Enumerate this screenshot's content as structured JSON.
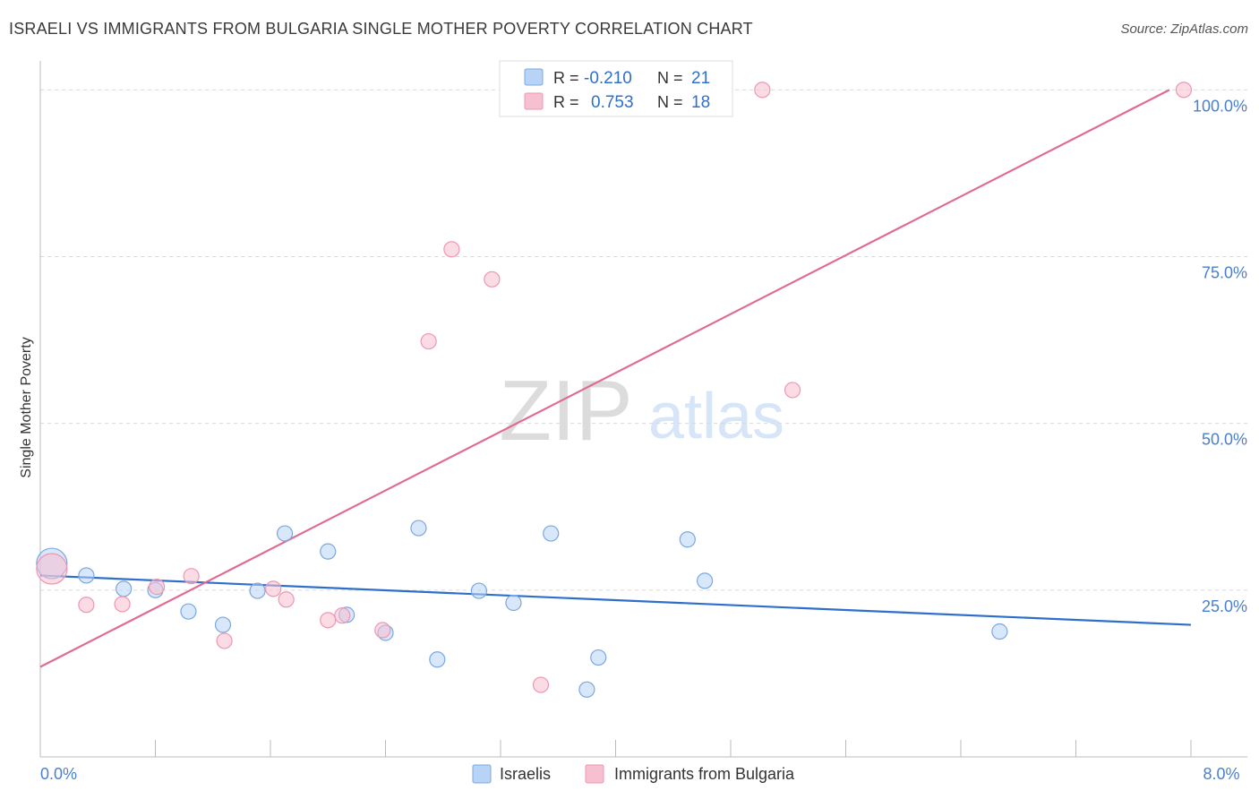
{
  "title": "ISRAELI VS IMMIGRANTS FROM BULGARIA SINGLE MOTHER POVERTY CORRELATION CHART",
  "source": "Source: ZipAtlas.com",
  "watermark": {
    "zip": "ZIP",
    "atlas": "atlas"
  },
  "colors": {
    "blue_fill": "#b8d3f5",
    "blue_stroke": "#7aa8e0",
    "blue_line": "#2e6fcc",
    "pink_fill": "#f7c0d0",
    "pink_stroke": "#ee96b2",
    "pink_line": "#e06a92",
    "tick_label": "#4a7fcf",
    "grid": "#d9d9d9"
  },
  "legend_top": [
    {
      "r_label": "R =",
      "r_value": "-0.210",
      "n_label": "N =",
      "n_value": "21",
      "series": "israelis"
    },
    {
      "r_label": "R =",
      "r_value": "0.753",
      "n_label": "N =",
      "n_value": "18",
      "series": "bulgaria"
    }
  ],
  "legend_bottom": [
    {
      "label": "Israelis",
      "series": "israelis"
    },
    {
      "label": "Immigrants from Bulgaria",
      "series": "bulgaria"
    }
  ],
  "chart_data": {
    "type": "scatter",
    "title": "ISRAELI VS IMMIGRANTS FROM BULGARIA SINGLE MOTHER POVERTY CORRELATION CHART",
    "xlabel": "",
    "ylabel": "Single Mother Poverty",
    "xlim": [
      0,
      8
    ],
    "ylim": [
      0,
      103
    ],
    "x_tick_labels": [
      {
        "value": 0,
        "label": "0.0%"
      },
      {
        "value": 8,
        "label": "8.0%"
      }
    ],
    "y_tick_labels": [
      {
        "value": 25,
        "label": "25.0%"
      },
      {
        "value": 50,
        "label": "50.0%"
      },
      {
        "value": 75,
        "label": "75.0%"
      },
      {
        "value": 100,
        "label": "100.0%"
      }
    ],
    "series": [
      {
        "name": "Israelis",
        "key": "israelis",
        "points": [
          {
            "x": 0.08,
            "y": 29.0,
            "big": true
          },
          {
            "x": 0.32,
            "y": 27.2
          },
          {
            "x": 0.58,
            "y": 25.2
          },
          {
            "x": 0.8,
            "y": 25.0
          },
          {
            "x": 1.03,
            "y": 21.8
          },
          {
            "x": 1.27,
            "y": 19.8
          },
          {
            "x": 1.51,
            "y": 24.9
          },
          {
            "x": 1.7,
            "y": 33.5
          },
          {
            "x": 2.0,
            "y": 30.8
          },
          {
            "x": 2.13,
            "y": 21.3
          },
          {
            "x": 2.4,
            "y": 18.6
          },
          {
            "x": 2.63,
            "y": 34.3
          },
          {
            "x": 2.76,
            "y": 14.6
          },
          {
            "x": 3.05,
            "y": 24.9
          },
          {
            "x": 3.29,
            "y": 23.1
          },
          {
            "x": 3.55,
            "y": 33.5
          },
          {
            "x": 3.8,
            "y": 10.1
          },
          {
            "x": 3.88,
            "y": 14.9
          },
          {
            "x": 4.5,
            "y": 32.6
          },
          {
            "x": 4.62,
            "y": 26.4
          },
          {
            "x": 6.67,
            "y": 18.8
          }
        ],
        "trend": {
          "x1": 0.0,
          "y1": 27.2,
          "x2": 8.0,
          "y2": 19.8
        }
      },
      {
        "name": "Immigrants from Bulgaria",
        "key": "bulgaria",
        "points": [
          {
            "x": 0.08,
            "y": 28.2,
            "big": true
          },
          {
            "x": 0.32,
            "y": 22.8
          },
          {
            "x": 0.57,
            "y": 22.9
          },
          {
            "x": 0.81,
            "y": 25.5
          },
          {
            "x": 1.05,
            "y": 27.1
          },
          {
            "x": 1.28,
            "y": 17.4
          },
          {
            "x": 1.62,
            "y": 25.2
          },
          {
            "x": 1.71,
            "y": 23.6
          },
          {
            "x": 2.0,
            "y": 20.5
          },
          {
            "x": 2.1,
            "y": 21.2
          },
          {
            "x": 2.38,
            "y": 19.0
          },
          {
            "x": 2.7,
            "y": 62.3
          },
          {
            "x": 2.86,
            "y": 76.1
          },
          {
            "x": 3.14,
            "y": 71.6
          },
          {
            "x": 3.48,
            "y": 10.8
          },
          {
            "x": 5.02,
            "y": 100.0
          },
          {
            "x": 5.23,
            "y": 55.0
          },
          {
            "x": 7.95,
            "y": 100.0
          }
        ],
        "trend": {
          "x1": 0.0,
          "y1": 13.5,
          "x2": 7.85,
          "y2": 100.0
        }
      }
    ]
  }
}
